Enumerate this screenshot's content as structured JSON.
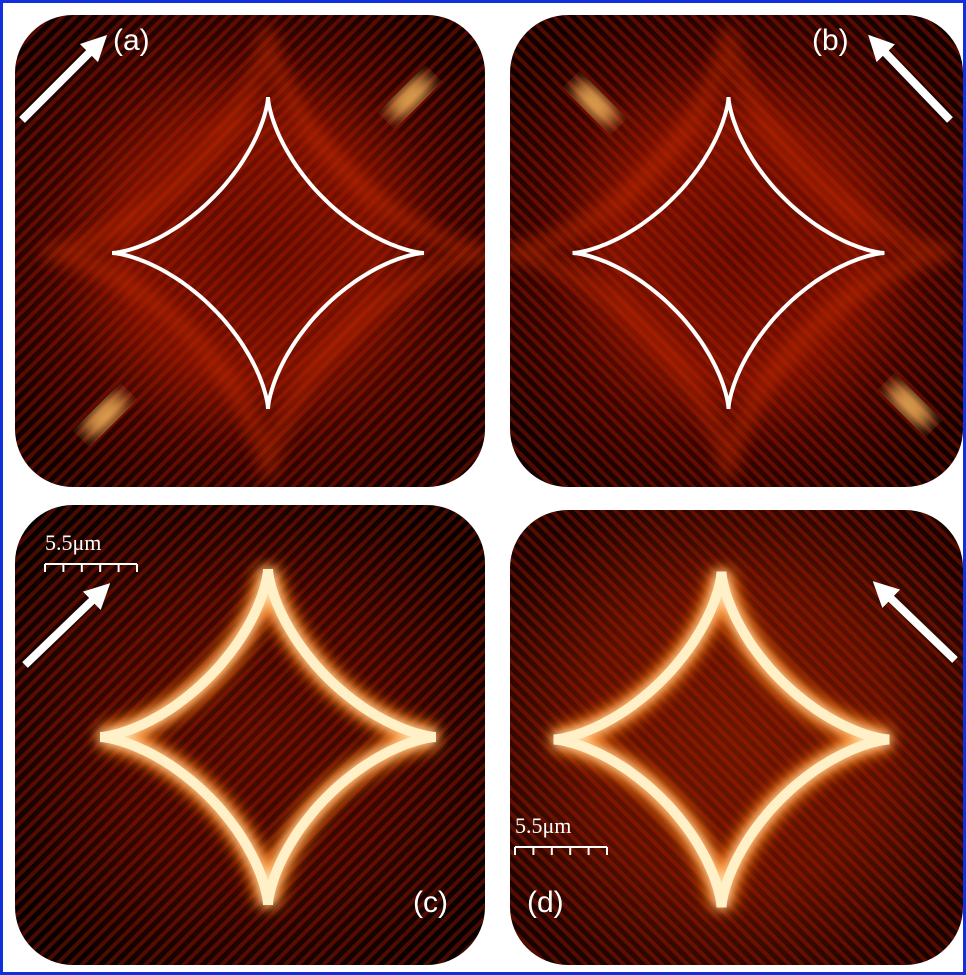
{
  "panels": [
    {
      "label": "(a)"
    },
    {
      "label": "(b)"
    },
    {
      "label": "(c)",
      "scale_bar": "5.5μm"
    },
    {
      "label": "(d)",
      "scale_bar": "5.5μm"
    }
  ]
}
